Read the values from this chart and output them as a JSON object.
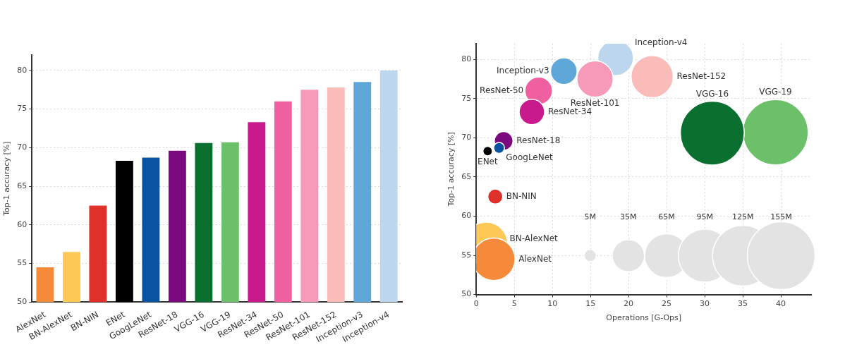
{
  "chart_data": [
    {
      "type": "bar",
      "ylabel": "Top-1 accuracy [%]",
      "categories": [
        "AlexNet",
        "BN-AlexNet",
        "BN-NIN",
        "ENet",
        "GoogLeNet",
        "ResNet-18",
        "VGG-16",
        "VGG-19",
        "ResNet-34",
        "ResNet-50",
        "ResNet-101",
        "ResNet-152",
        "Inception-v3",
        "Inception-v4"
      ],
      "values": [
        54.5,
        56.5,
        62.5,
        68.3,
        68.7,
        69.6,
        70.6,
        70.7,
        73.3,
        76.0,
        77.5,
        77.8,
        78.5,
        80.0
      ],
      "colors": [
        "#f58a3a",
        "#fdc855",
        "#e0302a",
        "#000000",
        "#0a52a2",
        "#7a0a7e",
        "#0a7030",
        "#6cc06a",
        "#c81a8c",
        "#f05fa0",
        "#f799b8",
        "#f9bcb9",
        "#5fa7d8",
        "#bcd6ee"
      ],
      "ylim": [
        50,
        82
      ],
      "yticks": [
        50,
        55,
        60,
        65,
        70,
        75,
        80
      ],
      "grid": "y"
    },
    {
      "type": "bubble",
      "xlabel": "Operations [G-Ops]",
      "ylabel": "Top-1 accuracy [%]",
      "series": [
        {
          "name": "AlexNet",
          "color": "#f58a3a",
          "x": [
            2.3
          ],
          "values": [
            54.5
          ],
          "sizes": [
            61
          ]
        },
        {
          "name": "BN-AlexNet",
          "color": "#fdc855",
          "x": [
            1.3
          ],
          "values": [
            56.5
          ],
          "sizes": [
            62
          ]
        },
        {
          "name": "BN-NIN",
          "color": "#e0302a",
          "x": [
            2.5
          ],
          "values": [
            62.5
          ],
          "sizes": [
            7.6
          ]
        },
        {
          "name": "ENet",
          "color": "#000000",
          "x": [
            1.5
          ],
          "values": [
            68.3
          ],
          "sizes": [
            3
          ]
        },
        {
          "name": "GoogLeNet",
          "color": "#0a52a2",
          "x": [
            3.0
          ],
          "values": [
            68.7
          ],
          "sizes": [
            4
          ]
        },
        {
          "name": "ResNet-18",
          "color": "#7a0a7e",
          "x": [
            3.6
          ],
          "values": [
            69.6
          ],
          "sizes": [
            11.7
          ]
        },
        {
          "name": "ResNet-34",
          "color": "#c81a8c",
          "x": [
            7.3
          ],
          "values": [
            73.3
          ],
          "sizes": [
            21.8
          ]
        },
        {
          "name": "ResNet-50",
          "color": "#f05fa0",
          "x": [
            8.2
          ],
          "values": [
            76.0
          ],
          "sizes": [
            25.6
          ]
        },
        {
          "name": "Inception-v3",
          "color": "#5fa7d8",
          "x": [
            11.5
          ],
          "values": [
            78.5
          ],
          "sizes": [
            23.8
          ]
        },
        {
          "name": "ResNet-101",
          "color": "#f799b8",
          "x": [
            15.6
          ],
          "values": [
            77.5
          ],
          "sizes": [
            44.5
          ]
        },
        {
          "name": "Inception-v4",
          "color": "#bcd6ee",
          "x": [
            18.3
          ],
          "values": [
            80.2
          ],
          "sizes": [
            42.7
          ]
        },
        {
          "name": "ResNet-152",
          "color": "#f9bcb9",
          "x": [
            23.1
          ],
          "values": [
            77.8
          ],
          "sizes": [
            60
          ]
        },
        {
          "name": "VGG-16",
          "color": "#0a7030",
          "x": [
            31.0
          ],
          "values": [
            70.6
          ],
          "sizes": [
            138
          ]
        },
        {
          "name": "VGG-19",
          "color": "#6cc06a",
          "x": [
            39.3
          ],
          "values": [
            70.7
          ],
          "sizes": [
            144
          ]
        }
      ],
      "size_legend": [
        {
          "value": 5,
          "label": "5M"
        },
        {
          "value": 35,
          "label": "35M"
        },
        {
          "value": 65,
          "label": "65M"
        },
        {
          "value": 95,
          "label": "95M"
        },
        {
          "value": 125,
          "label": "125M"
        },
        {
          "value": 155,
          "label": "155M"
        }
      ],
      "xlim": [
        0,
        44
      ],
      "xticks": [
        0,
        5,
        10,
        15,
        20,
        25,
        30,
        35,
        40
      ],
      "ylim": [
        50,
        82
      ],
      "yticks": [
        50,
        55,
        60,
        65,
        70,
        75,
        80
      ],
      "grid": true
    }
  ]
}
